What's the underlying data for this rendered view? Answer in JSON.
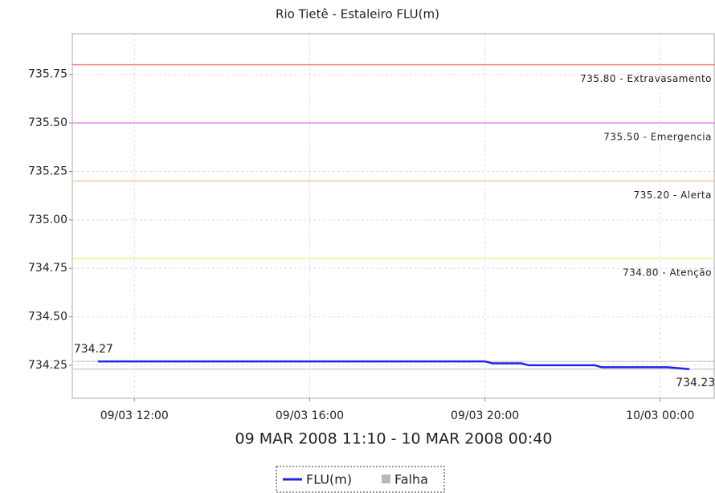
{
  "chart_data": {
    "type": "line",
    "title": "Rio Tietê - Estaleiro FLU(m)",
    "x_label": "09 MAR 2008 11:10 - 10 MAR 2008 00:40",
    "x": [
      "09/03 11:10",
      "09/03 14:00",
      "09/03 17:00",
      "09/03 20:00",
      "09/03 20:10",
      "09/03 20:50",
      "09/03 21:00",
      "09/03 22:30",
      "09/03 22:40",
      "10/03 00:10",
      "10/03 00:40"
    ],
    "series": [
      {
        "name": "FLU(m)",
        "color": "#2222ee",
        "values": [
          734.27,
          734.27,
          734.27,
          734.27,
          734.26,
          734.26,
          734.25,
          734.25,
          734.24,
          734.24,
          734.23
        ]
      }
    ],
    "failure_legend": {
      "name": "Falha",
      "color": "#b8b8b8"
    },
    "xlim": [
      "09/03 10:35",
      "10/03 01:15"
    ],
    "xticks": [
      "09/03 12:00",
      "09/03 16:00",
      "09/03 20:00",
      "10/03 00:00"
    ],
    "ylim": [
      734.08,
      735.96
    ],
    "yticks": [
      {
        "value": 734.25,
        "label": "734.25"
      },
      {
        "value": 734.5,
        "label": "734.50"
      },
      {
        "value": 734.75,
        "label": "734.75"
      },
      {
        "value": 735,
        "label": "735.00"
      },
      {
        "value": 735.25,
        "label": "735.25"
      },
      {
        "value": 735.5,
        "label": "735.50"
      },
      {
        "value": 735.75,
        "label": "735.75"
      }
    ],
    "grid": true,
    "thresholds": [
      {
        "value": 735.8,
        "label": "735.80 - Extravasamento",
        "color": "#f08080"
      },
      {
        "value": 735.5,
        "label": "735.50 - Emergencia",
        "color": "#ee82ee"
      },
      {
        "value": 735.2,
        "label": "735.20 - Alerta",
        "color": "#f8c898"
      },
      {
        "value": 734.8,
        "label": "734.80 - Atenção",
        "color": "#f4e89a"
      }
    ],
    "annotations": [
      {
        "x": "09/03 11:10",
        "y": 734.27,
        "position": "above-left"
      },
      {
        "x": "10/03 00:40",
        "y": 734.23,
        "position": "below"
      }
    ]
  }
}
